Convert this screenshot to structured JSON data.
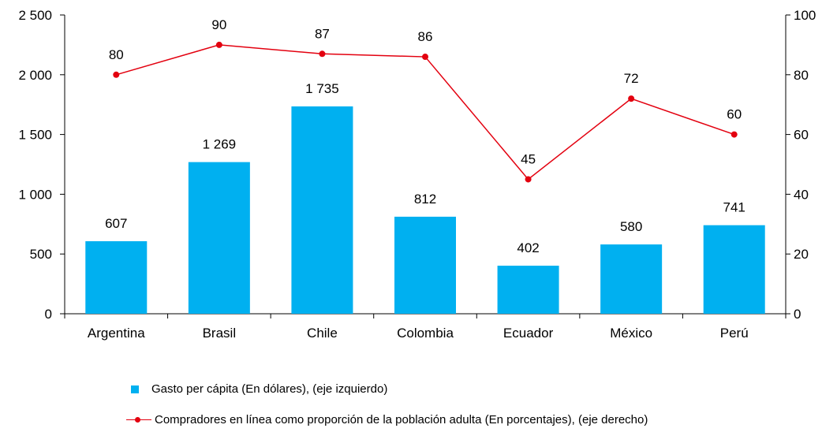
{
  "colors": {
    "bars": "#00b0f0",
    "line": "#e3000f",
    "axis": "#000000"
  },
  "chart_data": {
    "type": "bar+line",
    "categories": [
      "Argentina",
      "Brasil",
      "Chile",
      "Colombia",
      "Ecuador",
      "México",
      "Perú"
    ],
    "series": [
      {
        "name": "Gasto per cápita (En dólares), (eje izquierdo)",
        "type": "bar",
        "axis": "left",
        "values": [
          607,
          1269,
          1735,
          812,
          402,
          580,
          741
        ],
        "labels": [
          "607",
          "1 269",
          "1 735",
          "812",
          "402",
          "580",
          "741"
        ]
      },
      {
        "name": "Compradores en línea como proporción de la población adulta (En porcentajes), (eje derecho)",
        "type": "line",
        "axis": "right",
        "values": [
          80,
          90,
          87,
          86,
          45,
          72,
          60
        ],
        "labels": [
          "80",
          "90",
          "87",
          "86",
          "45",
          "72",
          "60"
        ]
      }
    ],
    "y_left": {
      "min": 0,
      "max": 2500,
      "ticks": [
        0,
        500,
        1000,
        1500,
        2000,
        2500
      ],
      "tick_labels": [
        "0",
        "500",
        "1 000",
        "1 500",
        "2 000",
        "2 500"
      ]
    },
    "y_right": {
      "min": 0,
      "max": 100,
      "ticks": [
        0,
        20,
        40,
        60,
        80,
        100
      ],
      "tick_labels": [
        "0",
        "20",
        "40",
        "60",
        "80",
        "100"
      ]
    },
    "grid": false,
    "legend_position": "bottom"
  }
}
